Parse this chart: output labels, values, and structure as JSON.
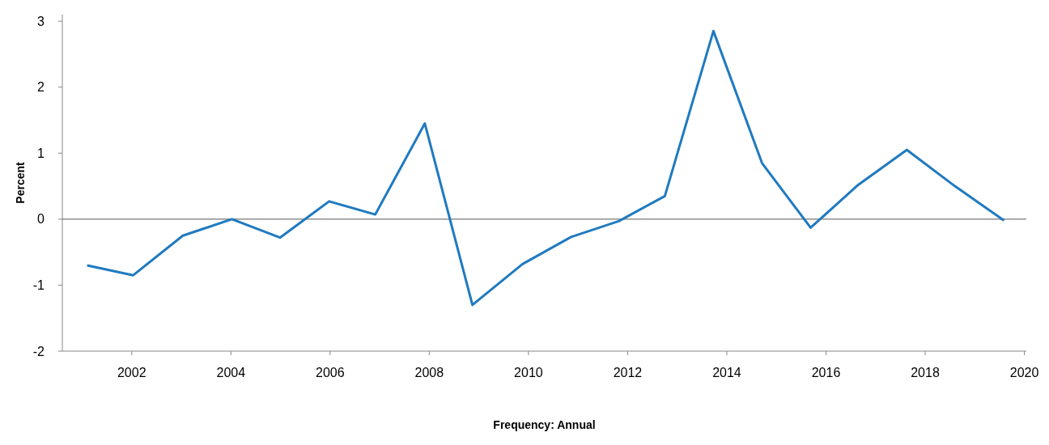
{
  "chart_data": {
    "type": "line",
    "ylabel": "Percent",
    "annotations": [
      "Frequency: Annual"
    ],
    "x": [
      2001.1,
      2002.03,
      2003.03,
      2004.02,
      2004.99,
      2005.98,
      2006.91,
      2007.91,
      2008.87,
      2009.88,
      2010.86,
      2011.82,
      2012.75,
      2013.73,
      2014.71,
      2015.69,
      2016.65,
      2017.63,
      2018.6,
      2019.59
    ],
    "series": [
      {
        "color": "#1f7ac0",
        "values": [
          -0.7,
          -0.85,
          -0.25,
          0.0,
          -0.28,
          0.27,
          0.07,
          1.45,
          -1.3,
          -0.68,
          -0.27,
          -0.03,
          0.35,
          2.85,
          0.85,
          -0.13,
          0.52,
          1.05,
          0.5,
          -0.02
        ]
      }
    ],
    "xlim": [
      2000.6,
      2020.04
    ],
    "xticks": [
      2002,
      2004,
      2006,
      2008,
      2010,
      2012,
      2014,
      2016,
      2018,
      2020
    ],
    "ylim": [
      -2,
      3.1
    ],
    "yticks": [
      -2,
      -1,
      0,
      1,
      2,
      3
    ],
    "ref_lines": [
      {
        "axis": "y",
        "value": 0,
        "color": "#555555"
      }
    ],
    "marker": "none",
    "line_style": "solid"
  }
}
